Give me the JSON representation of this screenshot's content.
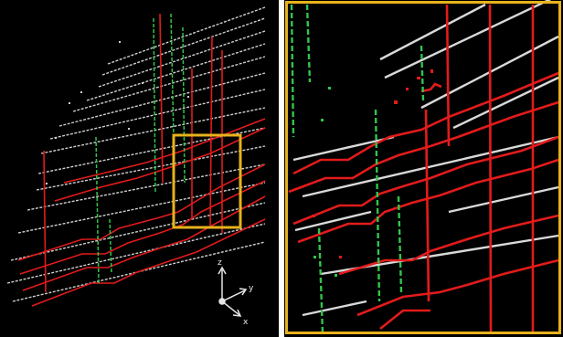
{
  "figure": {
    "left_panel": {
      "description_axes": {
        "x": "x",
        "y": "y",
        "z": "z"
      }
    },
    "highlight_box_color": "#e8b21c",
    "colors": {
      "background": "#000000",
      "line_white": "#d9d9d9",
      "line_red": "#e21b1b",
      "line_green": "#33c44a"
    }
  }
}
